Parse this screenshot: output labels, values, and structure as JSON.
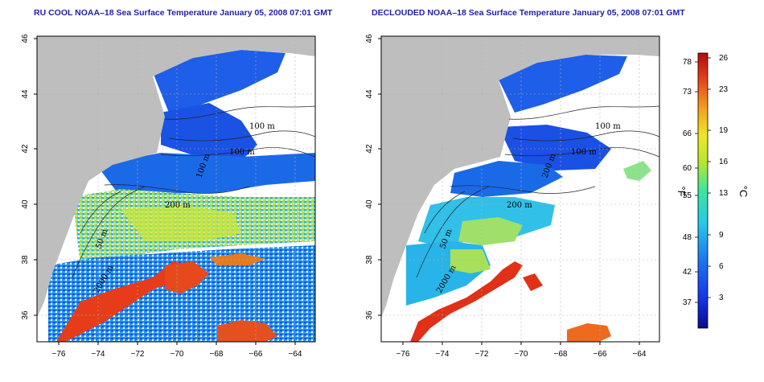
{
  "panels": [
    {
      "id": "left",
      "title": "RU COOL NOAA–18 Sea Surface Temperature January 05, 2008 07:01 GMT",
      "contour_labels": [
        "100 m",
        "100 m",
        "100 m",
        "200 m",
        "50 m",
        "2000 m"
      ]
    },
    {
      "id": "right",
      "title": "DECLOUDED NOAA–18 Sea Surface Temperature January 05, 2008 07:01 GMT",
      "contour_labels": [
        "100 m",
        "100 m",
        "200 m",
        "200 m",
        "50 m",
        "2000 m"
      ]
    }
  ],
  "axes": {
    "x_ticks": [
      "−76",
      "−74",
      "−72",
      "−70",
      "−68",
      "−66",
      "−64"
    ],
    "y_ticks": [
      "46",
      "44",
      "42",
      "40",
      "38",
      "36"
    ]
  },
  "colorbar": {
    "unit_f": "°F",
    "unit_c": "°C",
    "f_ticks": [
      "78",
      "73",
      "66",
      "60",
      "55",
      "48",
      "42",
      "37"
    ],
    "c_ticks": [
      "26",
      "23",
      "19",
      "16",
      "13",
      "9",
      "6",
      "3"
    ],
    "colors": [
      "#0a0a8c",
      "#1430e6",
      "#1e78f0",
      "#28c8e6",
      "#3ce6a0",
      "#b4e632",
      "#f0e628",
      "#f0a01e",
      "#e6461e",
      "#b40a0a"
    ]
  },
  "colors": {
    "land": "#bebebe",
    "title": "#1f1fa8",
    "background": "#ffffff"
  }
}
